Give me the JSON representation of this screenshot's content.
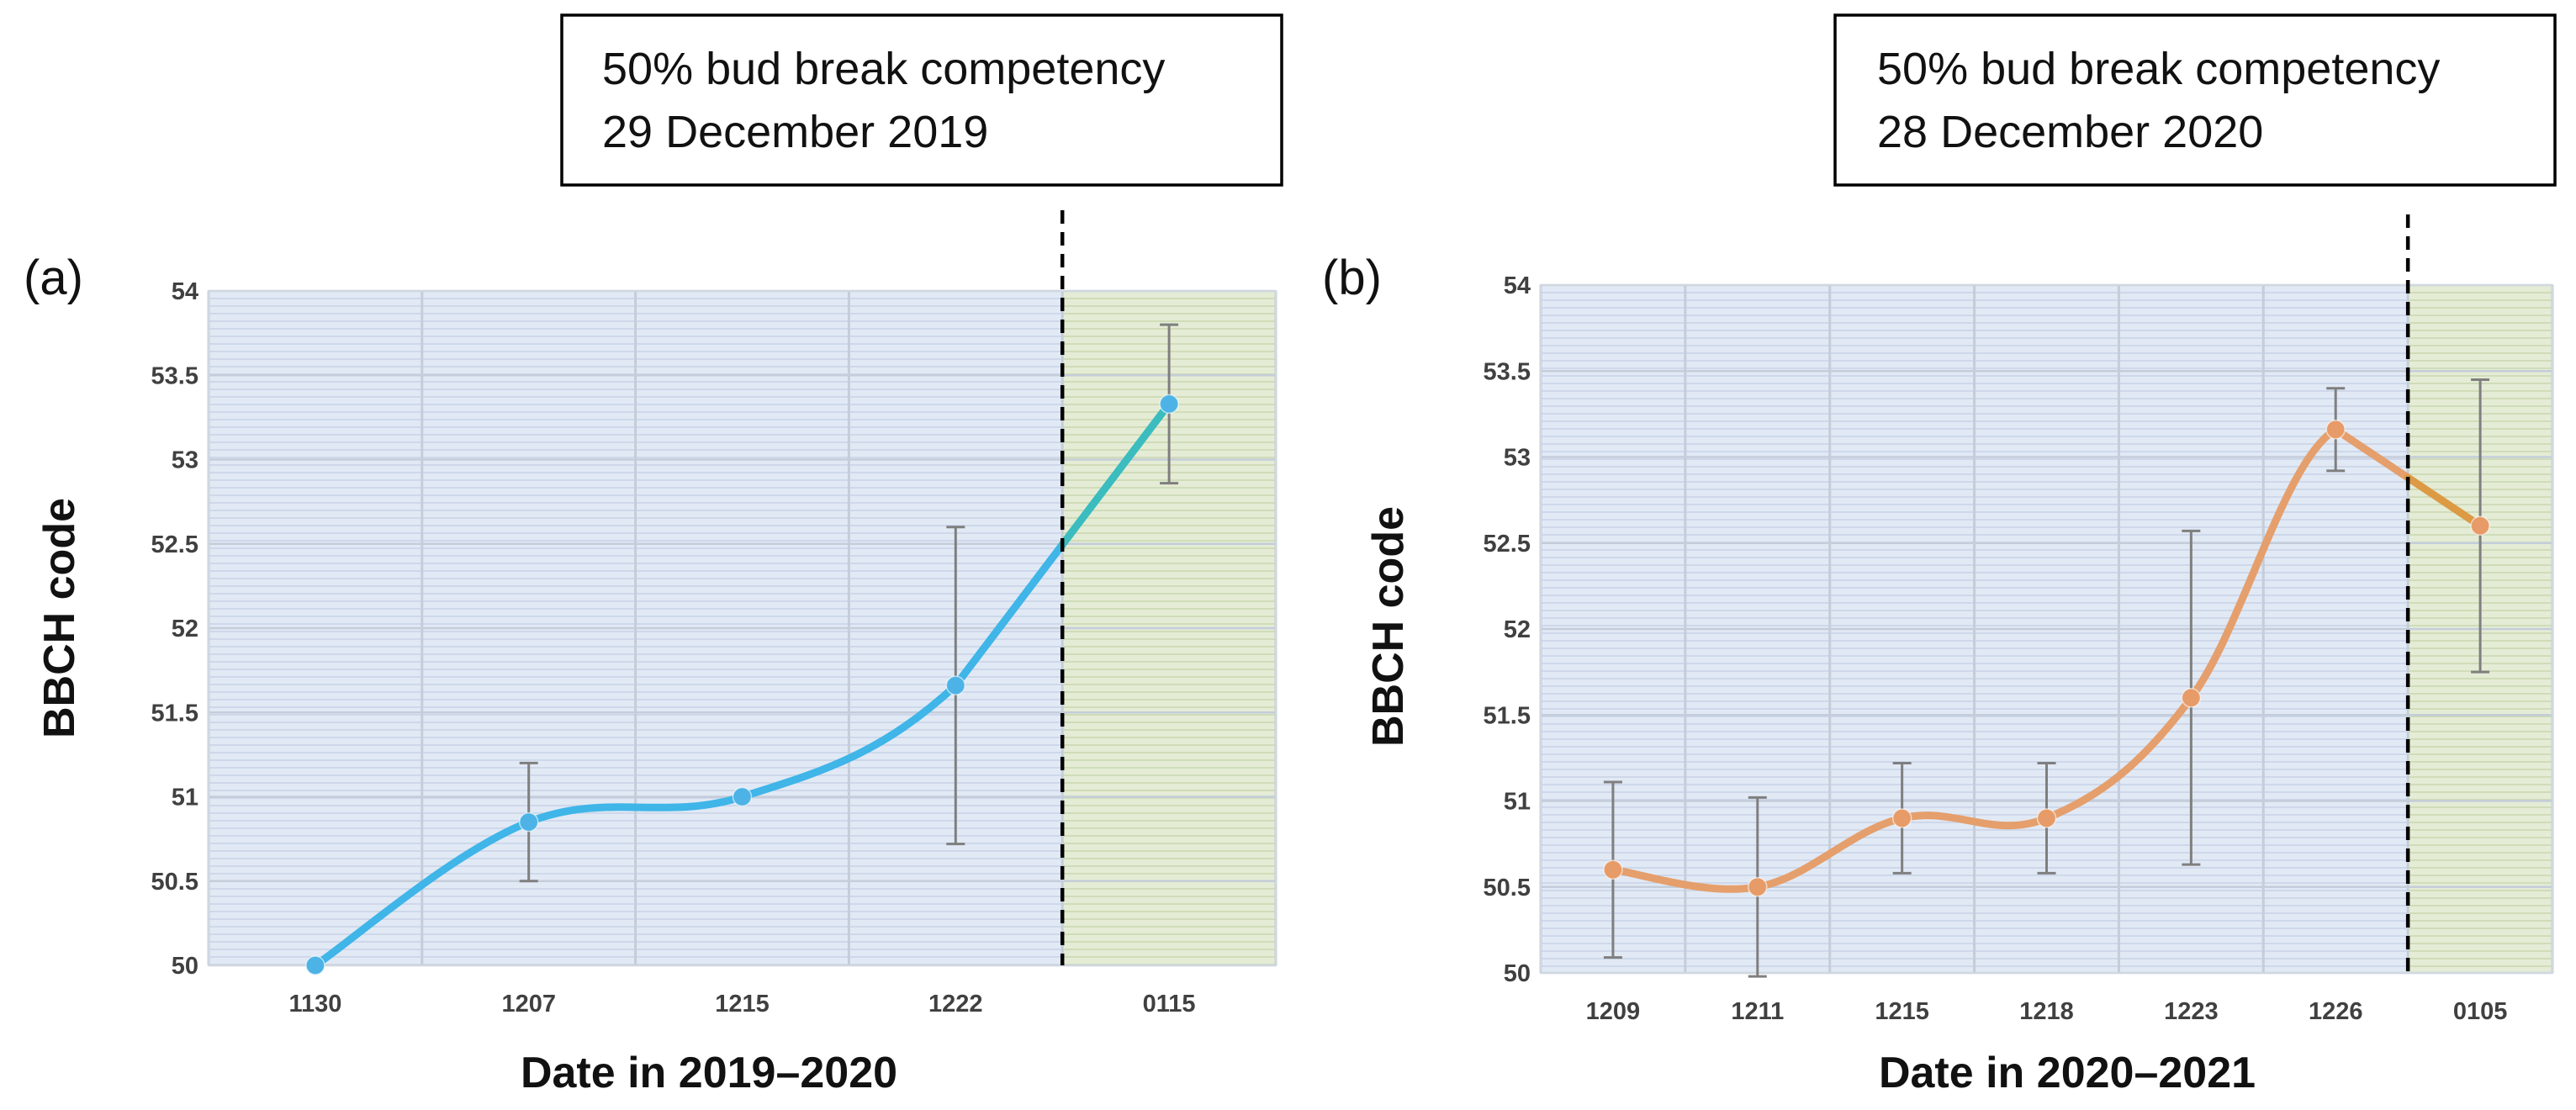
{
  "chart_data": [
    {
      "type": "line",
      "panel_label": "(a)",
      "title": "",
      "xlabel": "Date in 2019–2020",
      "ylabel": "BBCH code",
      "categories": [
        "1130",
        "1207",
        "1215",
        "1222",
        "0115"
      ],
      "ylim": [
        50,
        54
      ],
      "yticks": [
        "54",
        "53.5",
        "53",
        "52.5",
        "52",
        "51.5",
        "51",
        "50.5",
        "50"
      ],
      "grid": true,
      "series": [
        {
          "name": "BBCH",
          "values": [
            50.0,
            50.85,
            51.0,
            51.66,
            53.33
          ],
          "error": [
            0,
            0.35,
            0,
            0.94,
            0.47
          ]
        }
      ],
      "annotation": {
        "line1": "50% bud break competency",
        "line2": "29 December 2019",
        "position_category": 3.5
      },
      "colors": {
        "line_before": "#3fb5e8",
        "line_after": "#3bbcbf",
        "marker": "#4db3e6",
        "shade_before": "#e1e9f5",
        "shade_after": "#e4ecd5",
        "errorbar": "#7f7f7f"
      }
    },
    {
      "type": "line",
      "panel_label": "(b)",
      "title": "",
      "xlabel": "Date in 2020–2021",
      "ylabel": "BBCH code",
      "categories": [
        "1209",
        "1211",
        "1215",
        "1218",
        "1223",
        "1226",
        "0105"
      ],
      "ylim": [
        50,
        54
      ],
      "yticks": [
        "54",
        "53.5",
        "53",
        "52.5",
        "52",
        "51.5",
        "51",
        "50.5",
        "50"
      ],
      "grid": true,
      "series": [
        {
          "name": "BBCH",
          "values": [
            50.6,
            50.5,
            50.9,
            50.9,
            51.6,
            53.16,
            52.6
          ],
          "error": [
            0.51,
            0.52,
            0.32,
            0.32,
            0.97,
            0.24,
            0.85
          ]
        }
      ],
      "annotation": {
        "line1": "50% bud break competency",
        "line2": "28 December 2020",
        "position_category": 5.5
      },
      "colors": {
        "line_before": "#e59f6c",
        "line_after": "#dc9a45",
        "marker": "#e79b68",
        "shade_before": "#e1e9f5",
        "shade_after": "#e4ecd5",
        "errorbar": "#7f7f7f"
      }
    }
  ]
}
